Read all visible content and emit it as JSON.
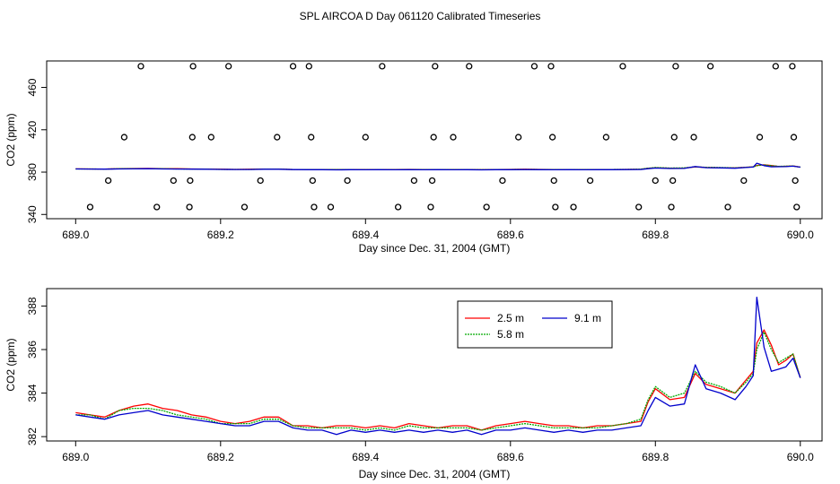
{
  "figure_title": "SPL AIRCOA D  Day 061120  Calibrated Timeseries",
  "chart_data": [
    {
      "type": "scatter",
      "xlabel": "Day since Dec. 31, 2004 (GMT)",
      "ylabel": "CO2 (ppm)",
      "xlim": [
        688.96,
        690.03
      ],
      "ylim": [
        336,
        485
      ],
      "xticks": [
        689.0,
        689.2,
        689.4,
        689.6,
        689.8,
        690.0
      ],
      "xtick_labels": [
        "689.0",
        "689.2",
        "689.4",
        "689.6",
        "689.8",
        "690.0"
      ],
      "yticks": [
        340,
        380,
        420,
        460
      ],
      "ytick_labels": [
        "340",
        "380",
        "420",
        "460"
      ],
      "points": [
        [
          689.02,
          347
        ],
        [
          689.045,
          372
        ],
        [
          689.067,
          413
        ],
        [
          689.09,
          480
        ],
        [
          689.112,
          347
        ],
        [
          689.135,
          372
        ],
        [
          689.157,
          347
        ],
        [
          689.158,
          372
        ],
        [
          689.161,
          413
        ],
        [
          689.162,
          480
        ],
        [
          689.187,
          413
        ],
        [
          689.211,
          480
        ],
        [
          689.233,
          347
        ],
        [
          689.255,
          372
        ],
        [
          689.278,
          413
        ],
        [
          689.3,
          480
        ],
        [
          689.322,
          480
        ],
        [
          689.325,
          413
        ],
        [
          689.327,
          372
        ],
        [
          689.329,
          347
        ],
        [
          689.352,
          347
        ],
        [
          689.375,
          372
        ],
        [
          689.4,
          413
        ],
        [
          689.423,
          480
        ],
        [
          689.445,
          347
        ],
        [
          689.467,
          372
        ],
        [
          689.49,
          347
        ],
        [
          689.492,
          372
        ],
        [
          689.494,
          413
        ],
        [
          689.496,
          480
        ],
        [
          689.521,
          413
        ],
        [
          689.543,
          480
        ],
        [
          689.567,
          347
        ],
        [
          689.589,
          372
        ],
        [
          689.611,
          413
        ],
        [
          689.633,
          480
        ],
        [
          689.656,
          480
        ],
        [
          689.658,
          413
        ],
        [
          689.66,
          372
        ],
        [
          689.662,
          347
        ],
        [
          689.687,
          347
        ],
        [
          689.71,
          372
        ],
        [
          689.732,
          413
        ],
        [
          689.755,
          480
        ],
        [
          689.777,
          347
        ],
        [
          689.8,
          372
        ],
        [
          689.822,
          347
        ],
        [
          689.824,
          372
        ],
        [
          689.826,
          413
        ],
        [
          689.828,
          480
        ],
        [
          689.853,
          413
        ],
        [
          689.876,
          480
        ],
        [
          689.9,
          347
        ],
        [
          689.922,
          372
        ],
        [
          689.944,
          413
        ],
        [
          689.966,
          480
        ],
        [
          689.989,
          480
        ],
        [
          689.991,
          413
        ],
        [
          689.993,
          372
        ],
        [
          689.995,
          347
        ]
      ]
    },
    {
      "type": "line",
      "xlabel": "Day since Dec. 31, 2004 (GMT)",
      "ylabel": "CO2 (ppm)",
      "xlim": [
        688.96,
        690.03
      ],
      "ylim": [
        381.8,
        388.8
      ],
      "xticks": [
        689.0,
        689.2,
        689.4,
        689.6,
        689.8,
        690.0
      ],
      "xtick_labels": [
        "689.0",
        "689.2",
        "689.4",
        "689.6",
        "689.8",
        "690.0"
      ],
      "yticks": [
        382,
        384,
        386,
        388
      ],
      "ytick_labels": [
        "382",
        "384",
        "386",
        "388"
      ],
      "legend": "top-center",
      "x": [
        689.0,
        689.02,
        689.04,
        689.06,
        689.08,
        689.1,
        689.12,
        689.14,
        689.16,
        689.18,
        689.2,
        689.22,
        689.24,
        689.26,
        689.28,
        689.3,
        689.32,
        689.34,
        689.36,
        689.38,
        689.4,
        689.42,
        689.44,
        689.46,
        689.48,
        689.5,
        689.52,
        689.54,
        689.56,
        689.58,
        689.6,
        689.62,
        689.64,
        689.66,
        689.68,
        689.7,
        689.72,
        689.74,
        689.76,
        689.78,
        689.79,
        689.8,
        689.82,
        689.84,
        689.855,
        689.87,
        689.89,
        689.91,
        689.925,
        689.935,
        689.94,
        689.95,
        689.96,
        689.97,
        689.98,
        689.99,
        690.0
      ],
      "series": [
        {
          "name": "2.5 m",
          "color": "#ff0000",
          "values": [
            383.1,
            383.0,
            382.9,
            383.2,
            383.4,
            383.5,
            383.3,
            383.2,
            383.0,
            382.9,
            382.7,
            382.6,
            382.7,
            382.9,
            382.9,
            382.5,
            382.5,
            382.4,
            382.5,
            382.5,
            382.4,
            382.5,
            382.4,
            382.6,
            382.5,
            382.4,
            382.5,
            382.5,
            382.3,
            382.5,
            382.6,
            382.7,
            382.6,
            382.5,
            382.5,
            382.4,
            382.5,
            382.5,
            382.6,
            382.7,
            383.6,
            384.2,
            383.7,
            383.8,
            384.9,
            384.4,
            384.2,
            384.0,
            384.6,
            385.0,
            386.3,
            386.9,
            386.2,
            385.3,
            385.5,
            385.8,
            384.7
          ]
        },
        {
          "name": "5.8 m",
          "color": "#00aa00",
          "values": [
            383.0,
            383.0,
            382.8,
            383.2,
            383.3,
            383.3,
            383.2,
            383.0,
            382.9,
            382.8,
            382.6,
            382.6,
            382.6,
            382.8,
            382.8,
            382.5,
            382.4,
            382.4,
            382.4,
            382.4,
            382.3,
            382.4,
            382.3,
            382.5,
            382.4,
            382.4,
            382.4,
            382.4,
            382.3,
            382.4,
            382.5,
            382.6,
            382.5,
            382.4,
            382.4,
            382.4,
            382.4,
            382.5,
            382.6,
            382.8,
            383.7,
            384.3,
            383.8,
            384.0,
            385.0,
            384.5,
            384.3,
            384.0,
            384.5,
            384.9,
            386.0,
            386.8,
            386.0,
            385.4,
            385.6,
            385.8,
            384.7
          ]
        },
        {
          "name": "9.1 m",
          "color": "#0000cc",
          "values": [
            383.0,
            382.9,
            382.8,
            383.0,
            383.1,
            383.2,
            383.0,
            382.9,
            382.8,
            382.7,
            382.6,
            382.5,
            382.5,
            382.7,
            382.7,
            382.4,
            382.3,
            382.3,
            382.1,
            382.3,
            382.2,
            382.3,
            382.2,
            382.3,
            382.2,
            382.3,
            382.2,
            382.3,
            382.1,
            382.3,
            382.3,
            382.4,
            382.3,
            382.2,
            382.3,
            382.2,
            382.3,
            382.3,
            382.4,
            382.5,
            383.2,
            383.8,
            383.4,
            383.5,
            385.3,
            384.2,
            384.0,
            383.7,
            384.3,
            384.8,
            388.4,
            386.1,
            385.0,
            385.1,
            385.2,
            385.6,
            384.7
          ]
        }
      ]
    }
  ]
}
